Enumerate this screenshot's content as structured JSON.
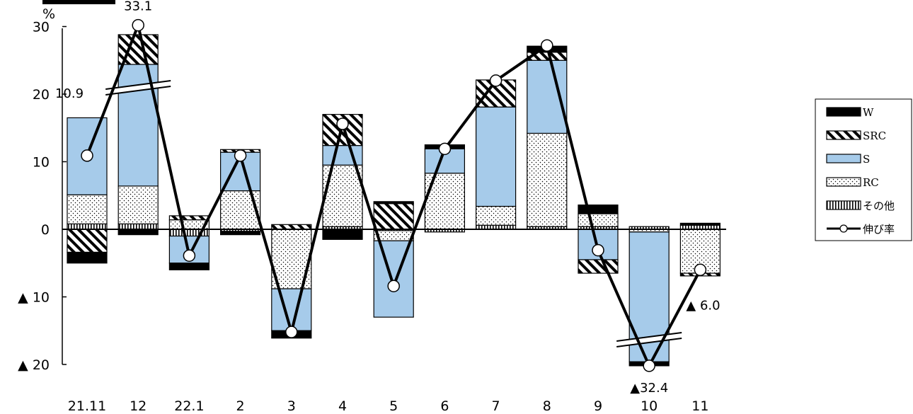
{
  "chart_data": {
    "type": "bar",
    "stacked": true,
    "y_unit": "%",
    "negative_prefix": "▲",
    "ylim": [
      -20,
      30
    ],
    "y_ticks": [
      30,
      20,
      10,
      0,
      -10,
      -20
    ],
    "y_tick_labels": [
      "30",
      "20",
      "10",
      "0",
      "▲ 10",
      "▲ 20"
    ],
    "categories": [
      "21.11",
      "12",
      "22.1",
      "2",
      "3",
      "4",
      "5",
      "6",
      "7",
      "8",
      "9",
      "10",
      "11"
    ],
    "legend_position": "right",
    "series": [
      {
        "name": "その他",
        "pattern": "vertical-lines",
        "color": "#ffffff",
        "values": [
          0.8,
          0.8,
          -1.0,
          -0.3,
          0.0,
          0.4,
          -0.2,
          -0.4,
          0.6,
          0.4,
          0.4,
          0.4,
          0.6
        ]
      },
      {
        "name": "RC",
        "pattern": "dots",
        "color": "#ffffff",
        "values": [
          4.3,
          5.6,
          1.4,
          5.7,
          -8.8,
          9.1,
          -1.5,
          8.3,
          2.8,
          13.8,
          1.9,
          -0.4,
          -6.5
        ]
      },
      {
        "name": "S",
        "pattern": "solid",
        "color": "#a6cbea",
        "values": [
          11.4,
          18.0,
          -4.0,
          5.7,
          -6.2,
          2.9,
          -11.3,
          3.6,
          14.7,
          10.8,
          -4.5,
          -19.2,
          0.0
        ]
      },
      {
        "name": "SRC",
        "pattern": "diagonal",
        "color": "#ffffff",
        "values": [
          -3.4,
          4.4,
          0.6,
          0.4,
          0.7,
          4.6,
          3.8,
          0.0,
          4.0,
          1.2,
          -2.0,
          0.0,
          -0.4
        ]
      },
      {
        "name": "W",
        "pattern": "solid",
        "color": "#000000",
        "values": [
          -1.6,
          -0.8,
          -1.0,
          -0.5,
          -1.1,
          -1.5,
          0.3,
          0.6,
          0.0,
          0.9,
          1.3,
          -0.6,
          0.3
        ]
      }
    ],
    "line_series": {
      "name": "伸び率",
      "values": [
        10.9,
        33.1,
        -3.9,
        10.9,
        -15.2,
        15.6,
        -8.4,
        11.9,
        22.0,
        27.2,
        -3.1,
        -32.4,
        -6.0
      ]
    },
    "axis_breaks": [
      "12",
      "10"
    ],
    "data_labels": [
      {
        "category": "21.11",
        "text": "10.9"
      },
      {
        "category": "12",
        "text": "33.1"
      },
      {
        "category": "10",
        "text": "▲32.4"
      },
      {
        "category": "11",
        "text": "▲ 6.0"
      }
    ]
  }
}
